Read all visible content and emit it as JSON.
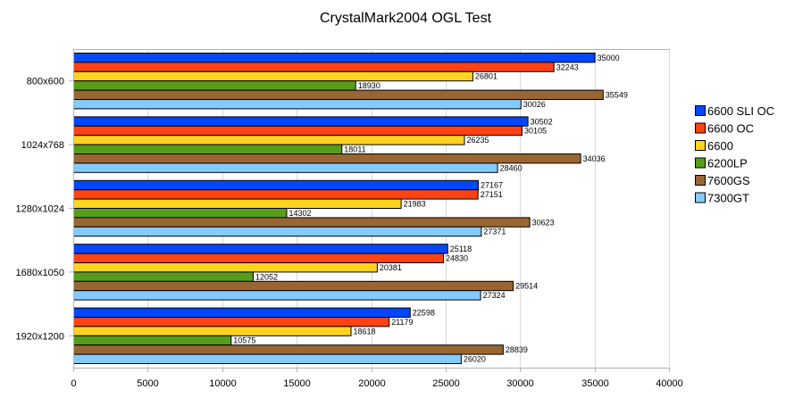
{
  "chart_data": {
    "type": "bar",
    "orientation": "horizontal",
    "title": "CrystalMark2004 OGL Test",
    "xlabel": "",
    "ylabel": "",
    "xlim": [
      0,
      40000
    ],
    "x_ticks": [
      "0",
      "5000",
      "10000",
      "15000",
      "20000",
      "25000",
      "30000",
      "35000",
      "40000"
    ],
    "grid": true,
    "legend_position": "right",
    "categories": [
      "800x600",
      "1024x768",
      "1280x1024",
      "1680x1050",
      "1920x1200"
    ],
    "series": [
      {
        "name": "6600 SLI OC",
        "color": "#0047ff",
        "values": [
          35000,
          30502,
          27167,
          25118,
          22598
        ]
      },
      {
        "name": "6600 OC",
        "color": "#ff4214",
        "values": [
          32243,
          30105,
          27151,
          24830,
          21179
        ]
      },
      {
        "name": "6600",
        "color": "#ffd320",
        "values": [
          26801,
          26235,
          21983,
          20381,
          18618
        ]
      },
      {
        "name": "6200LP",
        "color": "#579d1c",
        "values": [
          18930,
          18011,
          14302,
          12052,
          10575
        ]
      },
      {
        "name": "7600GS",
        "color": "#996633",
        "values": [
          35549,
          34036,
          30623,
          29514,
          28839
        ]
      },
      {
        "name": "7300GT",
        "color": "#83caff",
        "values": [
          30026,
          28460,
          27371,
          27324,
          26020
        ]
      }
    ]
  }
}
